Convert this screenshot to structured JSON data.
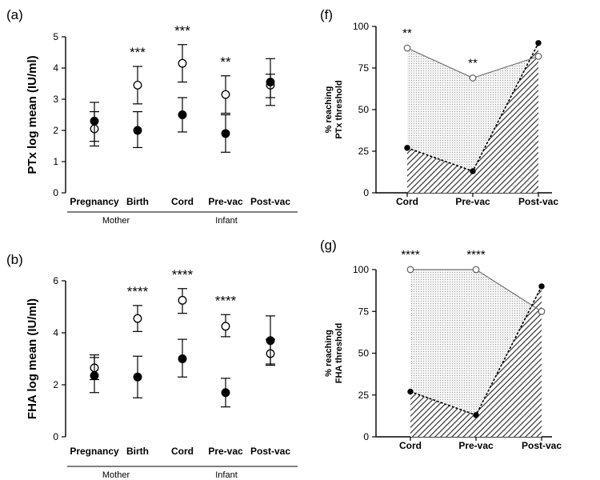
{
  "chart_data": [
    {
      "panel": "(a)",
      "type": "scatter",
      "ylabel": "PTx log mean (IU/ml)",
      "ylim": [
        0,
        5
      ],
      "yticks": [
        0,
        1,
        2,
        3,
        4,
        5
      ],
      "categories": [
        "Pregnancy",
        "Birth",
        "Cord",
        "Pre-vac",
        "Post-vac"
      ],
      "groups": [
        {
          "label": "Mother",
          "categories": [
            "Pregnancy",
            "Birth"
          ]
        },
        {
          "label": "Infant",
          "categories": [
            "Cord",
            "Pre-vac",
            "Post-vac"
          ]
        }
      ],
      "series": [
        {
          "marker": "open-circle",
          "values": [
            2.05,
            3.45,
            4.15,
            3.15,
            3.45
          ],
          "err_low": [
            1.65,
            2.85,
            3.55,
            2.55,
            3.05
          ],
          "err_high": [
            2.6,
            4.05,
            4.75,
            3.75,
            3.8
          ]
        },
        {
          "marker": "filled-circle",
          "values": [
            2.3,
            2.0,
            2.5,
            1.9,
            3.55
          ],
          "err_low": [
            1.5,
            1.45,
            1.95,
            1.3,
            2.8
          ],
          "err_high": [
            2.9,
            2.6,
            3.05,
            2.5,
            4.3
          ]
        }
      ],
      "annotations": [
        {
          "category": "Birth",
          "text": "***"
        },
        {
          "category": "Cord",
          "text": "***"
        },
        {
          "category": "Pre-vac",
          "text": "**"
        }
      ]
    },
    {
      "panel": "(b)",
      "type": "scatter",
      "ylabel": "FHA log mean (IU/ml)",
      "ylim": [
        0,
        6
      ],
      "yticks": [
        0,
        2,
        4,
        6
      ],
      "categories": [
        "Pregnancy",
        "Birth",
        "Cord",
        "Pre-vac",
        "Post-vac"
      ],
      "groups": [
        {
          "label": "Mother",
          "categories": [
            "Pregnancy",
            "Birth"
          ]
        },
        {
          "label": "Infant",
          "categories": [
            "Cord",
            "Pre-vac",
            "Post-vac"
          ]
        }
      ],
      "series": [
        {
          "marker": "open-circle",
          "values": [
            2.65,
            4.55,
            5.25,
            4.25,
            3.2
          ],
          "err_low": [
            2.2,
            4.05,
            4.75,
            3.85,
            2.75
          ],
          "err_high": [
            3.05,
            5.05,
            5.7,
            4.7,
            3.75
          ]
        },
        {
          "marker": "filled-circle",
          "values": [
            2.35,
            2.3,
            3.0,
            1.7,
            3.7
          ],
          "err_low": [
            1.7,
            1.5,
            2.3,
            1.15,
            2.8
          ],
          "err_high": [
            3.15,
            3.1,
            3.75,
            2.25,
            4.65
          ]
        }
      ],
      "annotations": [
        {
          "category": "Birth",
          "text": "****"
        },
        {
          "category": "Cord",
          "text": "****"
        },
        {
          "category": "Pre-vac",
          "text": "****"
        }
      ]
    },
    {
      "panel": "(f)",
      "type": "area",
      "ylabel": "% reaching\nPTx threshold",
      "ylim": [
        0,
        100
      ],
      "yticks": [
        0,
        25,
        50,
        75,
        100
      ],
      "categories": [
        "Cord",
        "Pre-vac",
        "Post-vac"
      ],
      "series": [
        {
          "marker": "open-circle",
          "values": [
            87,
            69,
            82
          ]
        },
        {
          "marker": "filled-circle",
          "values": [
            27,
            13,
            90
          ]
        }
      ],
      "annotations": [
        {
          "category": "Cord",
          "text": "**"
        },
        {
          "category": "Pre-vac",
          "text": "**"
        }
      ]
    },
    {
      "panel": "(g)",
      "type": "area",
      "ylabel": "% reaching\nFHA threshold",
      "ylim": [
        0,
        100
      ],
      "yticks": [
        0,
        25,
        50,
        75,
        100
      ],
      "categories": [
        "Cord",
        "Pre-vac",
        "Post-vac"
      ],
      "series": [
        {
          "marker": "open-circle",
          "values": [
            100,
            100,
            75
          ]
        },
        {
          "marker": "filled-circle",
          "values": [
            27,
            13,
            90
          ]
        }
      ],
      "annotations": [
        {
          "category": "Cord",
          "text": "****"
        },
        {
          "category": "Pre-vac",
          "text": "****"
        }
      ]
    }
  ]
}
